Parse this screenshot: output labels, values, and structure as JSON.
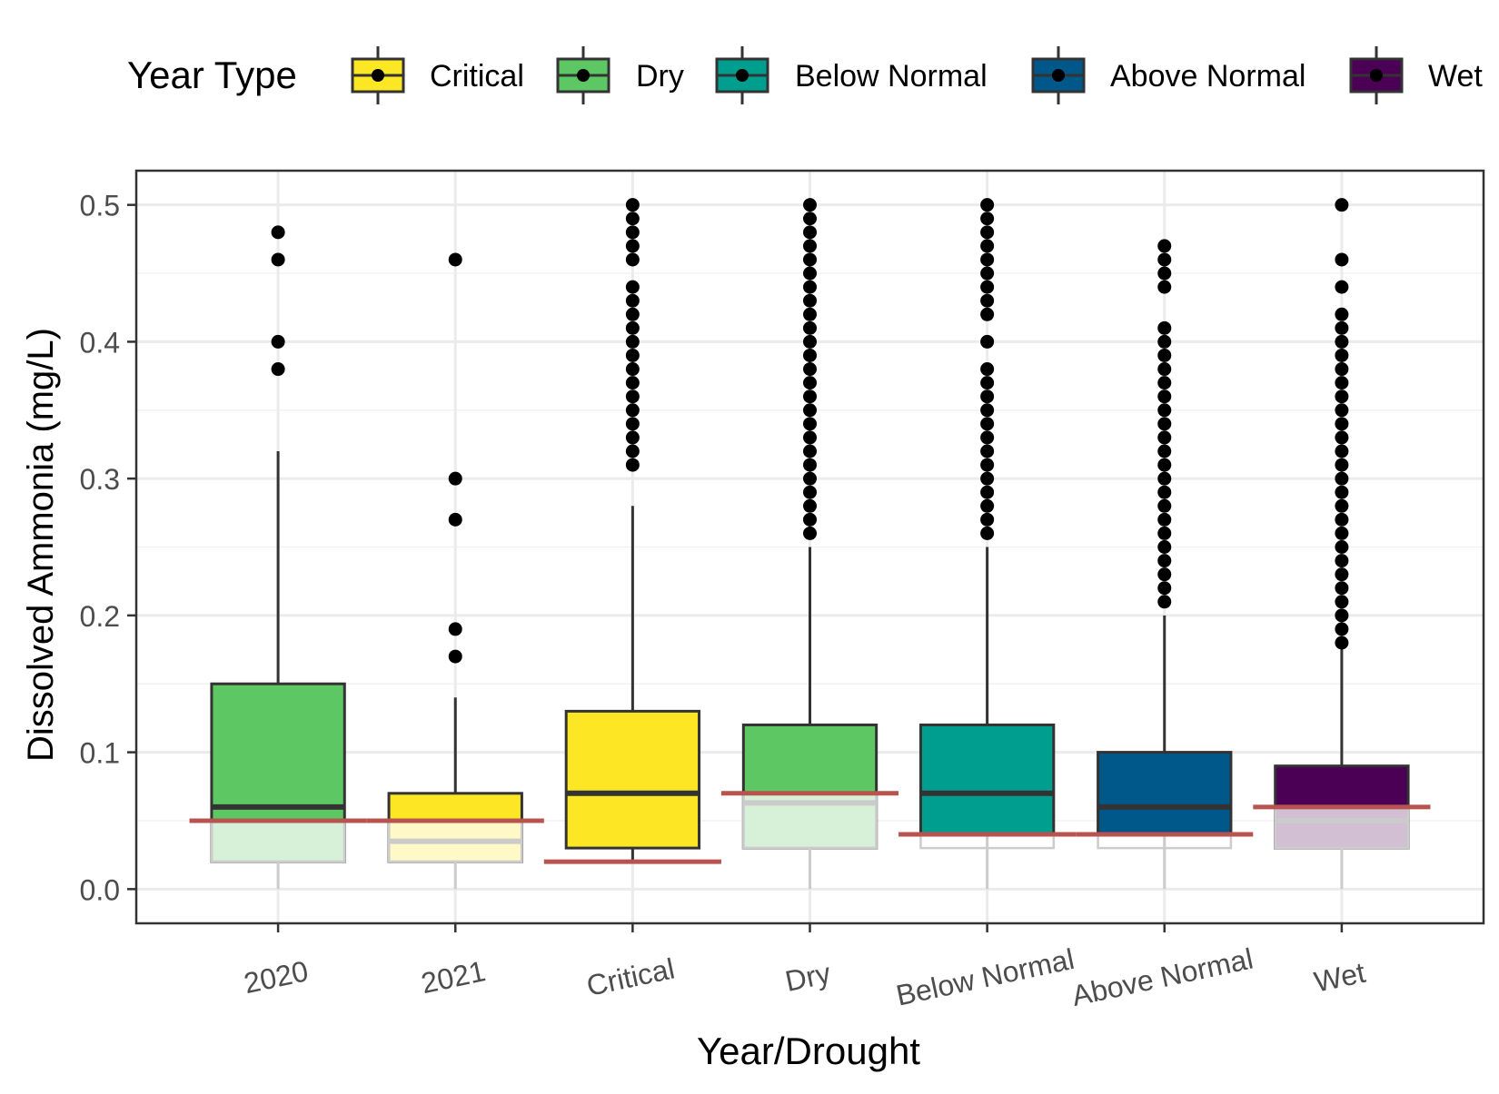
{
  "chart_data": {
    "type": "box",
    "xlabel": "Year/Drought",
    "ylabel": "Dissolved Ammonia (mg/L)",
    "ylim": [
      -0.025,
      0.525
    ],
    "yticks": [
      0.0,
      0.1,
      0.2,
      0.3,
      0.4,
      0.5
    ],
    "ytick_labels": [
      "0.0",
      "0.1",
      "0.2",
      "0.3",
      "0.4",
      "0.5"
    ],
    "grid": true,
    "legend": {
      "title": "Year Type",
      "position": "top",
      "entries": [
        {
          "label": "Critical",
          "color": "#FDE725"
        },
        {
          "label": "Dry",
          "color": "#5DC863"
        },
        {
          "label": "Below Normal",
          "color": "#009E8F"
        },
        {
          "label": "Above Normal",
          "color": "#00578A"
        },
        {
          "label": "Wet",
          "color": "#4B0055"
        }
      ]
    },
    "categories": [
      "2020",
      "2021",
      "Critical",
      "Dry",
      "Below Normal",
      "Above Normal",
      "Wet"
    ],
    "boxes": [
      {
        "category": "2020",
        "year_type": "Dry",
        "color": "#5DC863",
        "min": 0.02,
        "q1": 0.02,
        "median": 0.06,
        "q3": 0.15,
        "whisker_high": 0.32,
        "outliers": [
          0.38,
          0.4,
          0.46,
          0.48
        ],
        "reference": 0.05
      },
      {
        "category": "2021",
        "year_type": "Critical",
        "color": "#FDE725",
        "min": 0.02,
        "q1": 0.02,
        "median": 0.035,
        "q3": 0.07,
        "whisker_high": 0.14,
        "outliers": [
          0.17,
          0.19,
          0.27,
          0.3,
          0.46
        ],
        "reference": 0.05
      },
      {
        "category": "Critical",
        "year_type": "Critical",
        "color": "#FDE725",
        "min": 0.02,
        "q1": 0.03,
        "median": 0.07,
        "q3": 0.13,
        "whisker_high": 0.28,
        "outliers": [
          0.31,
          0.32,
          0.33,
          0.34,
          0.35,
          0.36,
          0.37,
          0.38,
          0.39,
          0.4,
          0.41,
          0.42,
          0.43,
          0.44,
          0.46,
          0.47,
          0.48,
          0.49,
          0.5
        ],
        "reference": 0.02
      },
      {
        "category": "Dry",
        "year_type": "Dry",
        "color": "#5DC863",
        "min": 0.03,
        "q1": 0.03,
        "median": 0.063,
        "q3": 0.12,
        "whisker_high": 0.25,
        "outliers": [
          0.26,
          0.27,
          0.28,
          0.29,
          0.3,
          0.31,
          0.32,
          0.33,
          0.34,
          0.35,
          0.36,
          0.37,
          0.38,
          0.39,
          0.4,
          0.41,
          0.42,
          0.43,
          0.44,
          0.45,
          0.46,
          0.47,
          0.48,
          0.49,
          0.5
        ],
        "reference": 0.07
      },
      {
        "category": "Below Normal",
        "year_type": "Below Normal",
        "color": "#009E8F",
        "min": 0.03,
        "q1": 0.04,
        "median": 0.07,
        "q3": 0.12,
        "whisker_high": 0.25,
        "outliers": [
          0.26,
          0.27,
          0.28,
          0.29,
          0.3,
          0.31,
          0.32,
          0.33,
          0.34,
          0.35,
          0.36,
          0.37,
          0.38,
          0.4,
          0.42,
          0.43,
          0.44,
          0.45,
          0.46,
          0.47,
          0.48,
          0.49,
          0.5
        ],
        "reference": 0.04
      },
      {
        "category": "Above Normal",
        "year_type": "Above Normal",
        "color": "#00578A",
        "min": 0.03,
        "q1": 0.04,
        "median": 0.06,
        "q3": 0.1,
        "whisker_high": 0.2,
        "outliers": [
          0.21,
          0.22,
          0.23,
          0.24,
          0.25,
          0.26,
          0.27,
          0.28,
          0.29,
          0.3,
          0.31,
          0.32,
          0.33,
          0.34,
          0.35,
          0.36,
          0.37,
          0.38,
          0.39,
          0.4,
          0.41,
          0.44,
          0.45,
          0.46,
          0.47
        ],
        "reference": 0.04
      },
      {
        "category": "Wet",
        "year_type": "Wet",
        "color": "#4B0055",
        "min": 0.03,
        "q1": 0.03,
        "median": 0.05,
        "q3": 0.09,
        "whisker_high": 0.18,
        "outliers": [
          0.18,
          0.19,
          0.2,
          0.21,
          0.22,
          0.23,
          0.24,
          0.25,
          0.26,
          0.27,
          0.28,
          0.29,
          0.3,
          0.31,
          0.32,
          0.33,
          0.34,
          0.35,
          0.36,
          0.37,
          0.38,
          0.39,
          0.4,
          0.41,
          0.42,
          0.44,
          0.46,
          0.5
        ],
        "reference": 0.06
      }
    ],
    "reference_line_color": "#B85450"
  }
}
